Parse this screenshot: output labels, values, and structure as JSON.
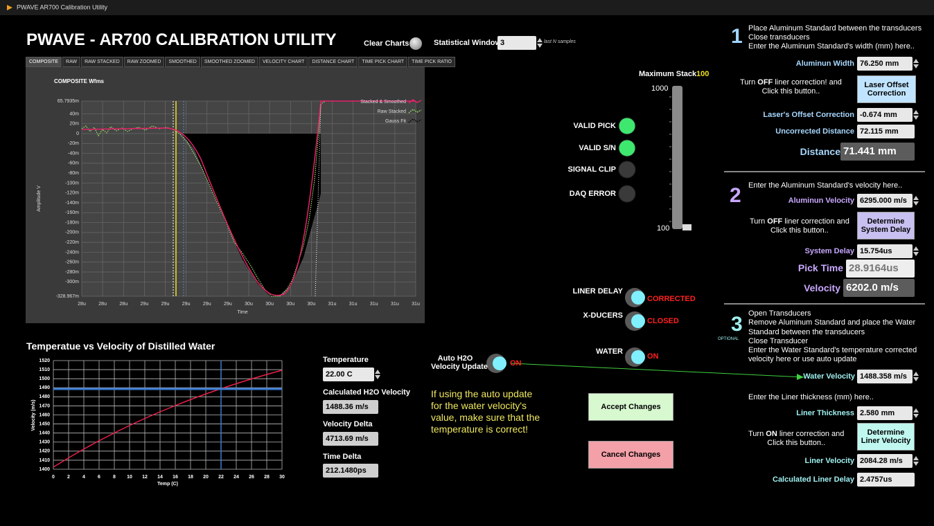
{
  "window_title": "PWAVE AR700 Calibration Utility",
  "header": {
    "title": "PWAVE - AR700  CALIBRATION UTILITY",
    "clear_charts": "Clear Charts",
    "statistical_window": {
      "label": "Statistical Window",
      "value": "3",
      "hint": "last N samples"
    }
  },
  "tabs": [
    "COMPOSITE",
    "RAW",
    "RAW STACKED",
    "RAW ZOOMED",
    "SMOOTHED",
    "SMOOTHED ZOOMED",
    "VELOCITY CHART",
    "DISTANCE CHART",
    "TIME PICK CHART",
    "TIME PICK RATIO"
  ],
  "composite_chart": {
    "title": "COMPOSITE Wfms",
    "ylabel": "Amplitude V",
    "xlabel": "Time",
    "ylim": [
      -0.328967,
      0.0657935
    ],
    "yticks": [
      {
        "value": 0.0657935,
        "label": "65.7935m"
      },
      {
        "value": 0.04,
        "label": "40m"
      },
      {
        "value": 0.02,
        "label": "20m"
      },
      0,
      {
        "value": -0.02,
        "label": "-20m"
      },
      {
        "value": -0.04,
        "label": "-40m"
      },
      {
        "value": -0.06,
        "label": "-60m"
      },
      {
        "value": -0.08,
        "label": "-80m"
      },
      {
        "value": -0.1,
        "label": "-100m"
      },
      {
        "value": -0.12,
        "label": "-120m"
      },
      {
        "value": -0.14,
        "label": "-140m"
      },
      {
        "value": -0.16,
        "label": "-160m"
      },
      {
        "value": -0.18,
        "label": "-180m"
      },
      {
        "value": -0.2,
        "label": "-200m"
      },
      {
        "value": -0.22,
        "label": "-220m"
      },
      {
        "value": -0.24,
        "label": "-240m"
      },
      {
        "value": -0.26,
        "label": "-260m"
      },
      {
        "value": -0.28,
        "label": "-280m"
      },
      {
        "value": -0.3,
        "label": "-300m"
      },
      {
        "value": -0.328967,
        "label": "-328.967m"
      }
    ],
    "xticks": [
      "28u",
      "28u",
      "28u",
      "29u",
      "29u",
      "29u",
      "29u",
      "29u",
      "30u",
      "30u",
      "30u",
      "30u",
      "31u",
      "31u",
      "31u",
      "31u",
      "31u"
    ],
    "legend": [
      {
        "name": "Stacked & Smoothed",
        "color": "#e8206a"
      },
      {
        "name": "Raw Stacked",
        "color": "#9be86a"
      },
      {
        "name": "Gauss Fit",
        "color": "#000000"
      }
    ]
  },
  "stack": {
    "label": "Maximum Stack",
    "value": "100",
    "max": "1000",
    "min": "100"
  },
  "indicators": [
    {
      "label": "VALID PICK",
      "color": "#3ee86e"
    },
    {
      "label": "VALID S/N",
      "color": "#3ee86e"
    },
    {
      "label": "SIGNAL CLIP",
      "color": "#3a3a3a"
    },
    {
      "label": "DAQ ERROR",
      "color": "#3a3a3a"
    }
  ],
  "switches": [
    {
      "label": "LINER DELAY",
      "state": "CORRECTED"
    },
    {
      "label": "X-DUCERS",
      "state": "CLOSED"
    },
    {
      "label": "WATER",
      "state": "ON"
    }
  ],
  "auto_update": {
    "label": [
      "Auto H2O",
      "Velocity Update"
    ],
    "state": "ON"
  },
  "note": [
    "If using the auto update",
    "for the water velocity's",
    "value, make sure that the",
    "temperature is correct!"
  ],
  "buttons": {
    "accept": "Accept Changes",
    "cancel": "Cancel Changes"
  },
  "temp_chart": {
    "title": "Temperatue vs Velocity of Distilled Water",
    "xlabel": "Temp (C)",
    "ylabel": "Velocity (m/s)",
    "xlim": [
      0,
      30
    ],
    "ylim": [
      1400,
      1520
    ],
    "xticks": [
      0,
      2,
      4,
      6,
      8,
      10,
      12,
      14,
      16,
      18,
      20,
      22,
      24,
      26,
      28,
      30
    ],
    "yticks": [
      1400,
      1410,
      1420,
      1430,
      1440,
      1450,
      1460,
      1470,
      1480,
      1490,
      1500,
      1510,
      1520
    ]
  },
  "water_fields": [
    {
      "label": "Temperature",
      "value": "22.00 C"
    },
    {
      "label": "Calculated H2O Velocity",
      "value": "1488.36 m/s"
    },
    {
      "label": "Velocity Delta",
      "value": "4713.69 m/s"
    },
    {
      "label": "Time Delta",
      "value": "212.1480ps"
    }
  ],
  "steps": [
    {
      "number": "1",
      "lines": [
        "Place Aluminum Standard between the transducers",
        "Close transducers",
        "Enter the Aluminum Standard's width (mm) here.."
      ],
      "width": {
        "label": "Aluminun Width",
        "value": "76.250 mm"
      },
      "instruction": {
        "pre": "Turn ",
        "bold": "OFF",
        "post": " liner correction! and",
        "line2": "Click this button.."
      },
      "button": "Laser Offset Correction",
      "offset": {
        "label": "Laser's Offset Correction",
        "value": "-0.674 mm"
      },
      "uncorrected": {
        "label": "Uncorrected Distance",
        "value": "72.115 mm"
      },
      "result": {
        "label": "Distance",
        "value": "71.441 mm"
      }
    },
    {
      "number": "2",
      "lines": [
        "Enter the Aluminum Standard's velocity here.."
      ],
      "velocity": {
        "label": "Aluminun Velocity",
        "value": "6295.000 m/s"
      },
      "instruction": {
        "pre": "Turn ",
        "bold": "OFF",
        "post": " liner correction and",
        "line2": "Click this button.."
      },
      "button": "Determine System Delay",
      "delay": {
        "label": "System Delay",
        "value": "15.754us"
      },
      "pick": {
        "label": "Pick Time",
        "value": "28.9164us"
      },
      "result": {
        "label": "Velocity",
        "value": "6202.0 m/s"
      }
    },
    {
      "number": "3",
      "tag": "OPTIONAL",
      "lines": [
        "Open Transducers",
        "Remove Aluminum Standard and place the Water",
        "Standard between the transducers",
        "Close Transducer",
        "Enter the Water Standard's temperature corrected",
        "velocity here or use auto update"
      ],
      "water": {
        "label": "Water Velocity",
        "value": "1488.358 m/s"
      },
      "liner_prompt": "Enter the Liner thickness (mm) here..",
      "thickness": {
        "label": "Liner Thickness",
        "value": "2.580 mm"
      },
      "instruction": {
        "pre": "Turn ",
        "bold": "ON",
        "post": " liner correction and",
        "line2": "Click this button.."
      },
      "button": "Determine Liner Velocity",
      "liner_velocity": {
        "label": "Liner Velocity",
        "value": "2084.28 m/s"
      },
      "liner_delay": {
        "label": "Calculated Liner Delay",
        "value": "2.4757us"
      }
    }
  ]
}
